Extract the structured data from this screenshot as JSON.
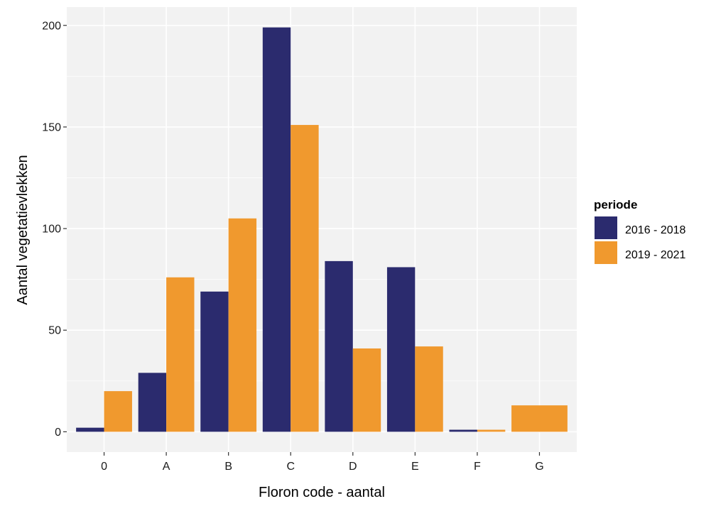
{
  "chart_data": {
    "type": "bar",
    "title": "",
    "xlabel": "Floron code - aantal",
    "ylabel": "Aantal vegetatievlekken",
    "categories": [
      "0",
      "A",
      "B",
      "C",
      "D",
      "E",
      "F",
      "G"
    ],
    "series": [
      {
        "name": "2016 - 2018",
        "color": "#2b2b6e",
        "values": [
          2,
          29,
          69,
          199,
          84,
          81,
          1,
          null
        ]
      },
      {
        "name": "2019 - 2021",
        "color": "#f0992e",
        "values": [
          20,
          76,
          105,
          151,
          41,
          42,
          1,
          13
        ]
      }
    ],
    "yticks": [
      0,
      50,
      100,
      150,
      200
    ],
    "ylim": [
      -10,
      209
    ],
    "grid": true,
    "legend": {
      "title": "periode",
      "position": "right"
    }
  }
}
